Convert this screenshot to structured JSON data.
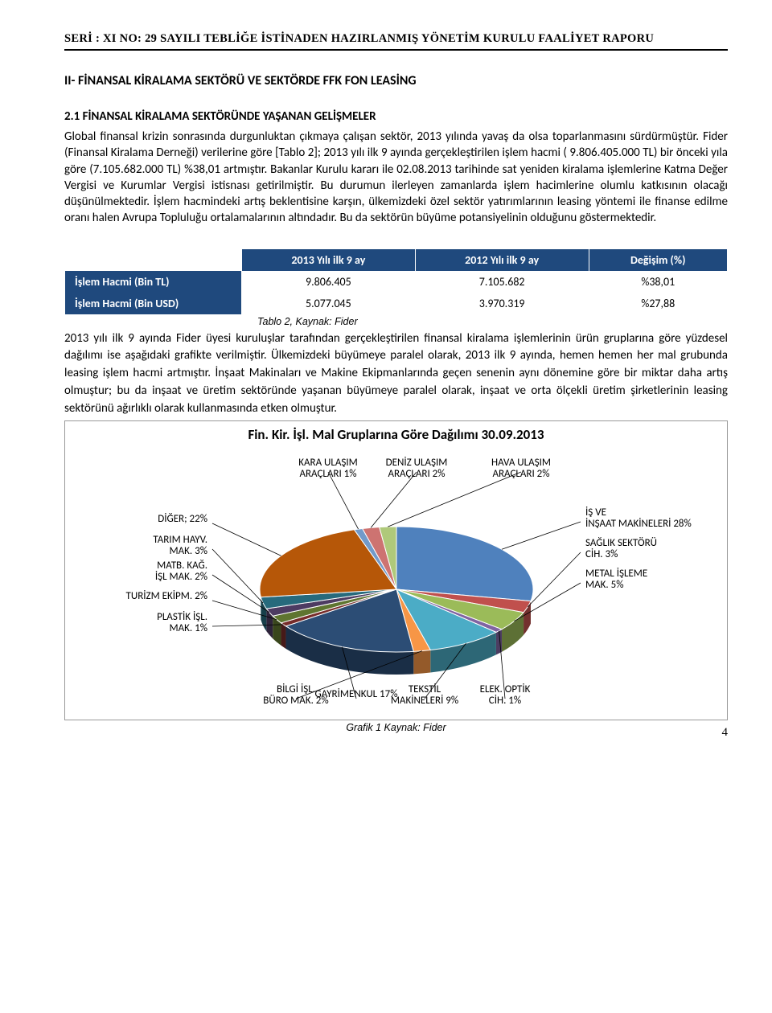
{
  "doc_header": "SERİ : XI NO: 29 SAYILI TEBLİĞE İSTİNADEN HAZIRLANMIŞ YÖNETİM KURULU FAALİYET  RAPORU",
  "section_title": "II- FİNANSAL KİRALAMA SEKTÖRÜ VE SEKTÖRDE FFK FON LEASİNG",
  "sub_title": "2.1 FİNANSAL KİRALAMA SEKTÖRÜNDE YAŞANAN GELİŞMELER",
  "body_text": "Global finansal krizin sonrasında durgunluktan çıkmaya çalışan sektör, 2013 yılında yavaş da olsa toparlanmasını sürdürmüştür. Fider (Finansal Kiralama Derneği) verilerine göre  [Tablo 2]; 2013 yılı ilk 9 ayında gerçekleştirilen  işlem hacmi ( 9.806.405.000 TL) bir önceki yıla  göre (7.105.682.000 TL) %38,01 artmıştır. Bakanlar Kurulu kararı ile 02.08.2013 tarihinde sat yeniden kiralama işlemlerine Katma Değer Vergisi ve Kurumlar Vergisi istisnası getirilmiştir. Bu durumun ilerleyen zamanlarda işlem hacimlerine olumlu katkısının olacağı düşünülmektedir. İşlem hacmindeki  artış beklentisine karşın, ülkemizdeki özel sektör yatırımlarının leasing yöntemi ile finanse edilme oranı halen Avrupa Topluluğu ortalamalarının altındadır. Bu da sektörün büyüme potansiyelinin olduğunu göstermektedir.",
  "table": {
    "header_bg": "#1f497d",
    "header_color": "#ffffff",
    "columns": [
      "",
      "2013 Yılı ilk 9 ay",
      "2012 Yılı ilk 9 ay",
      "Değişim (%)"
    ],
    "rows": [
      [
        "İşlem Hacmi (Bin TL)",
        "9.806.405",
        "7.105.682",
        "%38,01"
      ],
      [
        "İşlem Hacmi (Bin USD)",
        "5.077.045",
        "3.970.319",
        "%27,88"
      ]
    ],
    "caption": "Tablo 2, Kaynak: Fider"
  },
  "post_table_text": "2013 yılı ilk 9 ayında Fider üyesi kuruluşlar tarafından gerçekleştirilen finansal kiralama işlemlerinin ürün gruplarına göre yüzdesel dağılımı ise aşağıdaki grafikte  verilmiştir. Ülkemizdeki büyümeye paralel olarak, 2013 ilk 9 ayında, hemen hemen her mal grubunda leasing işlem hacmi artmıştır.  İnşaat Makinaları ve Makine Ekipmanlarında geçen senenin aynı dönemine göre bir miktar daha artış olmuştur; bu da  inşaat ve üretim sektöründe yaşanan büyümeye paralel olarak, inşaat ve orta ölçekli üretim şirketlerinin leasing sektörünü ağırlıklı olarak kullanmasında etken olmuştur.",
  "chart": {
    "title": "Fin. Kir. İşl. Mal Gruplarına Göre Dağılımı 30.09.2013",
    "type": "pie3d",
    "tilt_deg": 55,
    "slices": [
      {
        "label": "İŞ VE İNŞAAT MAKİNELERİ",
        "pct": 28,
        "color": "#4f81bd",
        "label_pos": "right"
      },
      {
        "label": "SAĞLIK SEKTÖRÜ CİH.",
        "pct": 3,
        "color": "#c0504d",
        "label_pos": "right"
      },
      {
        "label": "METAL İŞLEME MAK.",
        "pct": 5,
        "color": "#9bbb59",
        "label_pos": "right"
      },
      {
        "label": "ELEK. OPTİK CİH.",
        "pct": 1,
        "color": "#8064a2",
        "label_pos": "bottom"
      },
      {
        "label": "TEKSTİL MAKİNELERİ",
        "pct": 9,
        "color": "#4bacc6",
        "label_pos": "bottom"
      },
      {
        "label": "BİLGİ İŞL. BÜRO MAK.",
        "pct": 2,
        "color": "#f79646",
        "label_pos": "bottom"
      },
      {
        "label": "GAYRİMENKUL",
        "pct": 17,
        "color": "#2c4d75",
        "label_pos": "bottom"
      },
      {
        "label": "PLASTİK İŞL. MAK.",
        "pct": 1,
        "color": "#772c2a",
        "label_pos": "left"
      },
      {
        "label": "TURİZM EKİPM.",
        "pct": 2,
        "color": "#5f7530",
        "label_pos": "left"
      },
      {
        "label": "MATB. KAĞ. İŞL MAK.",
        "pct": 2,
        "color": "#4d3b62",
        "label_pos": "left"
      },
      {
        "label": "TARIM HAYV. MAK.",
        "pct": 3,
        "color": "#276a7c",
        "label_pos": "left"
      },
      {
        "label": "DİĞER",
        "pct": 22,
        "color": "#b65708",
        "label_pos": "left",
        "label_sep": ";"
      },
      {
        "label": "KARA ULAŞIM ARAÇLARI",
        "pct": 1,
        "color": "#729aca",
        "label_pos": "top"
      },
      {
        "label": "DENİZ ULAŞIM ARAÇLARI",
        "pct": 2,
        "color": "#cd7371",
        "label_pos": "top"
      },
      {
        "label": "HAVA ULAŞIM ARAÇLARI",
        "pct": 2,
        "color": "#afc97a",
        "label_pos": "top"
      }
    ],
    "caption": "Grafik 1 Kaynak: Fider"
  },
  "page_number": "4"
}
